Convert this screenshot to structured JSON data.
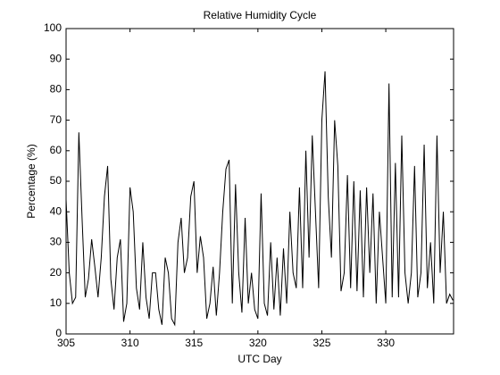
{
  "chart_data": {
    "type": "line",
    "title": "Relative Humidity Cycle",
    "x_label": "UTC Day",
    "y_label": "Percentage (%)",
    "xlim": [
      305,
      335.3
    ],
    "ylim": [
      0,
      100
    ],
    "xticks": [
      305,
      310,
      315,
      320,
      325,
      330
    ],
    "yticks": [
      0,
      10,
      20,
      30,
      40,
      50,
      60,
      70,
      80,
      90,
      100
    ],
    "x": [
      305,
      305.25,
      305.5,
      305.75,
      306,
      306.25,
      306.5,
      306.75,
      307,
      307.25,
      307.5,
      307.75,
      308,
      308.25,
      308.5,
      308.75,
      309,
      309.25,
      309.5,
      309.75,
      310,
      310.25,
      310.5,
      310.75,
      311,
      311.25,
      311.5,
      311.75,
      312,
      312.25,
      312.5,
      312.75,
      313,
      313.25,
      313.5,
      313.75,
      314,
      314.25,
      314.5,
      314.75,
      315,
      315.25,
      315.5,
      315.75,
      316,
      316.25,
      316.5,
      316.75,
      317,
      317.25,
      317.5,
      317.75,
      318,
      318.25,
      318.5,
      318.75,
      319,
      319.25,
      319.5,
      319.75,
      320,
      320.25,
      320.5,
      320.75,
      321,
      321.25,
      321.5,
      321.75,
      322,
      322.25,
      322.5,
      322.75,
      323,
      323.25,
      323.5,
      323.75,
      324,
      324.25,
      324.5,
      324.75,
      325,
      325.25,
      325.5,
      325.75,
      326,
      326.25,
      326.5,
      326.75,
      327,
      327.25,
      327.5,
      327.75,
      328,
      328.25,
      328.5,
      328.75,
      329,
      329.25,
      329.5,
      329.75,
      330,
      330.25,
      330.5,
      330.75,
      331,
      331.25,
      331.5,
      331.75,
      332,
      332.25,
      332.5,
      332.75,
      333,
      333.25,
      333.5,
      333.75,
      334,
      334.25,
      334.5,
      334.75,
      335,
      335.25
    ],
    "series": [
      {
        "name": "Relative Humidity",
        "color": "#000000",
        "values": [
          44,
          20,
          10,
          12,
          66,
          38,
          12,
          18,
          31,
          22,
          12,
          25,
          45,
          55,
          18,
          8,
          25,
          31,
          4,
          10,
          48,
          40,
          15,
          8,
          30,
          12,
          5,
          20,
          20,
          8,
          3,
          25,
          20,
          5,
          3,
          30,
          38,
          20,
          25,
          45,
          50,
          20,
          32,
          25,
          5,
          10,
          22,
          6,
          20,
          40,
          54,
          57,
          10,
          49,
          20,
          7,
          38,
          10,
          20,
          8,
          5,
          46,
          10,
          6,
          30,
          8,
          25,
          6,
          28,
          10,
          40,
          20,
          15,
          48,
          15,
          60,
          25,
          65,
          40,
          15,
          70,
          86,
          45,
          25,
          70,
          55,
          14,
          20,
          52,
          15,
          50,
          14,
          47,
          12,
          48,
          20,
          46,
          10,
          40,
          25,
          10,
          82,
          12,
          56,
          12,
          65,
          20,
          10,
          20,
          55,
          12,
          20,
          62,
          15,
          30,
          10,
          65,
          20,
          40,
          10,
          13,
          11
        ]
      }
    ]
  }
}
